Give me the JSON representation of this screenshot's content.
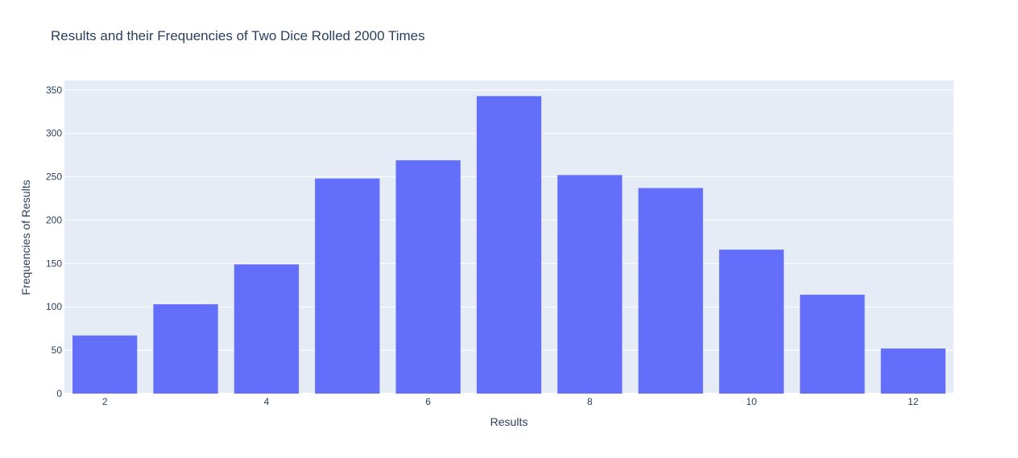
{
  "chart_data": {
    "type": "bar",
    "title": "Results and their Frequencies of Two Dice Rolled 2000 Times",
    "xlabel": "Results",
    "ylabel": "Frequencies of Results",
    "x": [
      2,
      3,
      4,
      5,
      6,
      7,
      8,
      9,
      10,
      11,
      12
    ],
    "values": [
      67,
      103,
      149,
      248,
      269,
      343,
      252,
      237,
      166,
      114,
      52
    ],
    "xlim": [
      1.5,
      12.5
    ],
    "ylim": [
      0,
      361
    ],
    "x_ticks": [
      2,
      4,
      6,
      8,
      10,
      12
    ],
    "y_ticks": [
      0,
      50,
      100,
      150,
      200,
      250,
      300,
      350
    ],
    "grid": true,
    "colors": {
      "bar": "#636efa",
      "plot_bg": "#e5ecf6",
      "grid": "#ffffff",
      "text": "#2a3f5f"
    }
  }
}
